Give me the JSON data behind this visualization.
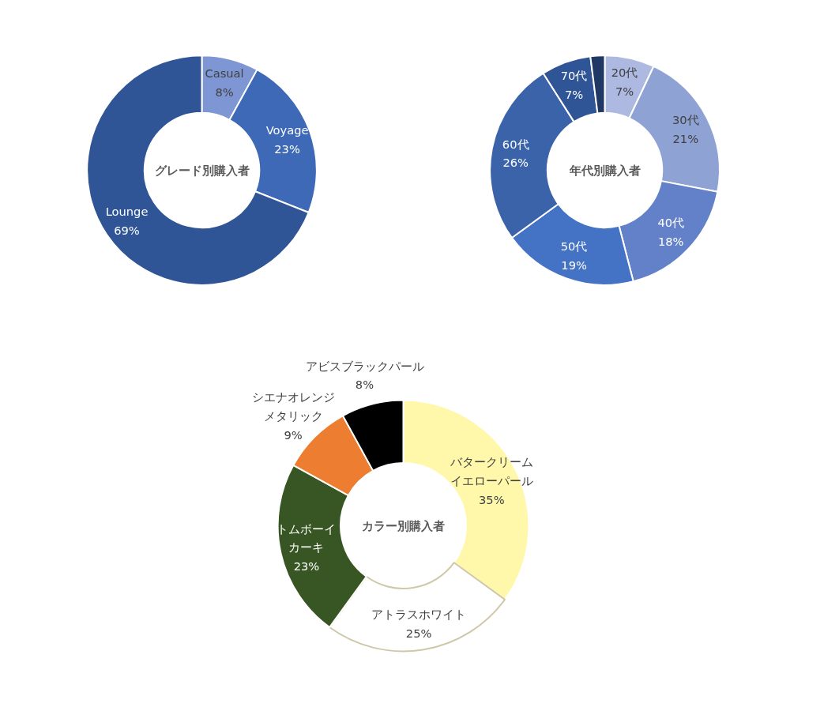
{
  "chart_data": [
    {
      "type": "donut",
      "title": "グレード別購入者",
      "categories": [
        "Casual",
        "Voyage",
        "Lounge"
      ],
      "values": [
        8,
        23,
        69
      ],
      "value_labels": [
        "8%",
        "23%",
        "69%"
      ],
      "colors": [
        "#7f96d4",
        "#3d69b7",
        "#2f5597"
      ]
    },
    {
      "type": "donut",
      "title": "年代別購入者",
      "categories": [
        "20代",
        "30代",
        "40代",
        "50代",
        "60代",
        "70代",
        null
      ],
      "values": [
        7,
        21,
        18,
        19,
        26,
        7,
        2
      ],
      "value_labels": [
        "7%",
        "21%",
        "18%",
        "19%",
        "26%",
        "7%",
        null
      ],
      "colors": [
        "#adb9e0",
        "#8fa2d4",
        "#6381c8",
        "#4472c4",
        "#3a63a9",
        "#2f5597",
        "#203864"
      ]
    },
    {
      "type": "donut",
      "title": "カラー別購入者",
      "categories": [
        "バタークリームイエローパール",
        "アトラスホワイト",
        "トムボーイカーキ",
        "シエナオレンジメタリック",
        "アビスブラックパール"
      ],
      "values": [
        35,
        25,
        23,
        9,
        8
      ],
      "value_labels": [
        "35%",
        "25%",
        "23%",
        "9%",
        "8%"
      ],
      "colors": [
        "#fff8aa",
        "#ffffff",
        "#375623",
        "#ed7d31",
        "#000000"
      ]
    }
  ]
}
